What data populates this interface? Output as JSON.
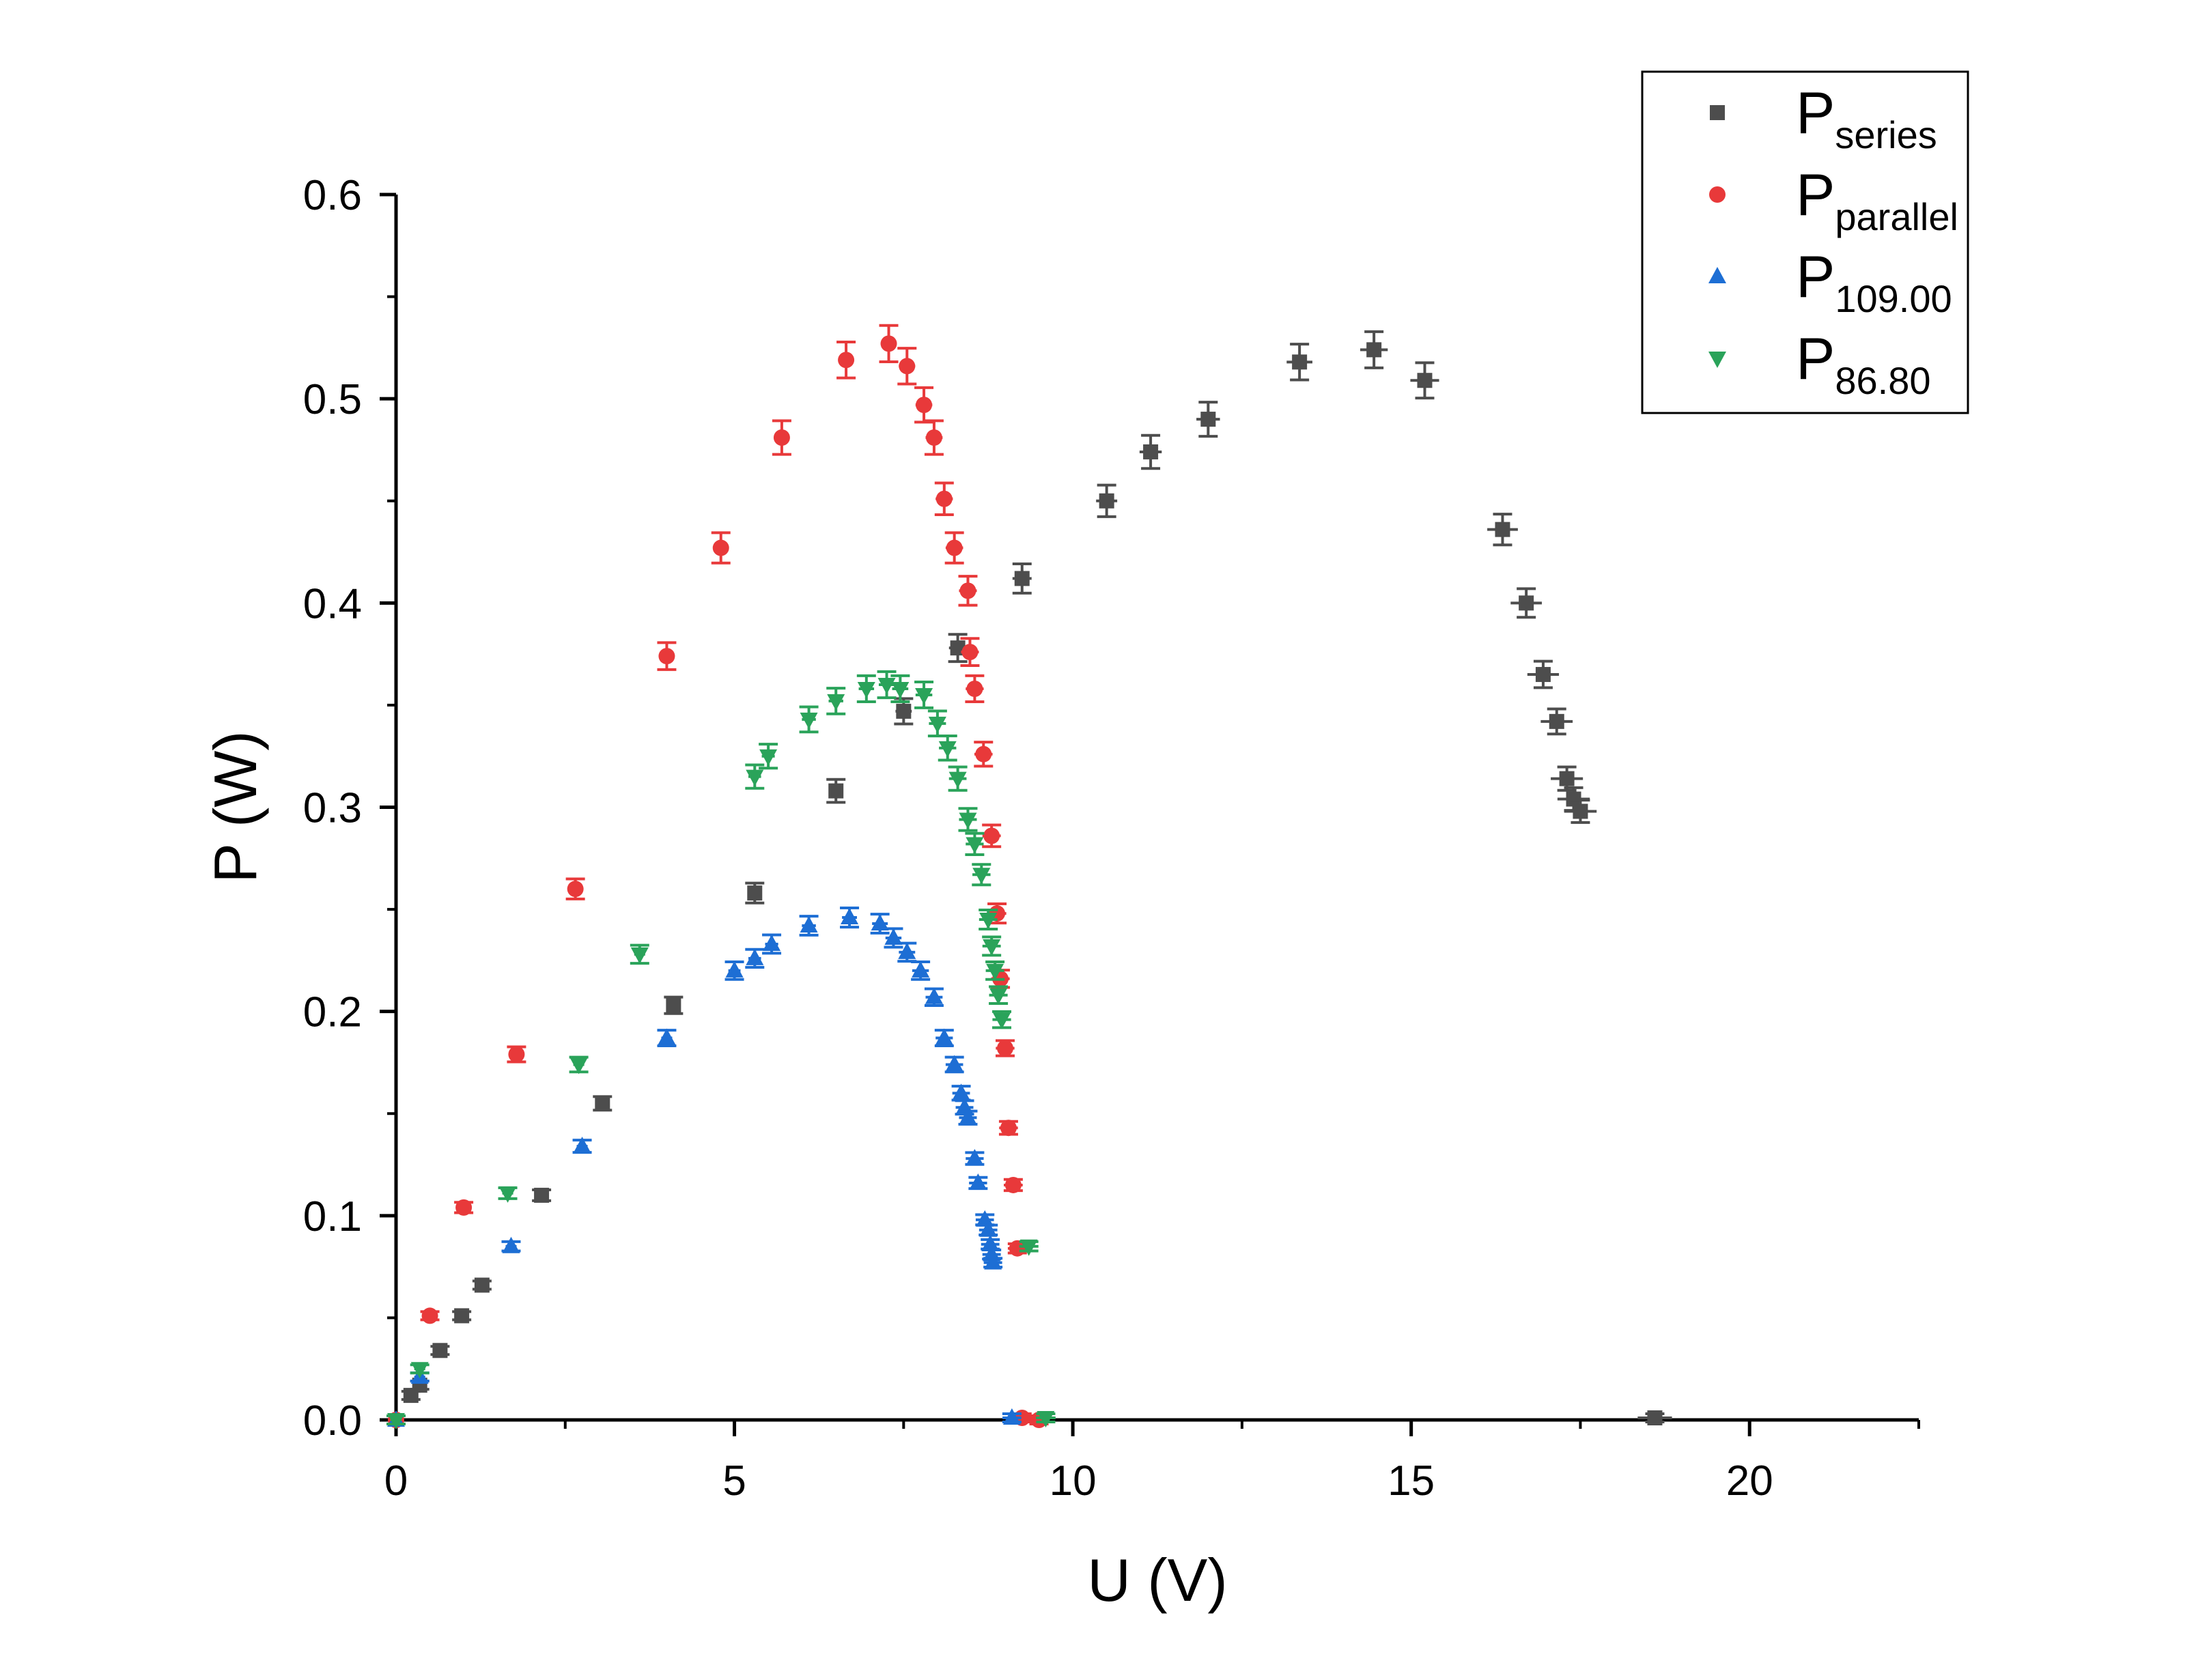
{
  "chart_data": {
    "type": "scatter",
    "xlabel": "U (V)",
    "ylabel": "P (W)",
    "xlim": [
      0,
      22.5
    ],
    "ylim": [
      0,
      0.6
    ],
    "x_ticks": [
      "0",
      "5",
      "10",
      "15",
      "20"
    ],
    "y_ticks": [
      "0.0",
      "0.1",
      "0.2",
      "0.3",
      "0.4",
      "0.5",
      "0.6"
    ],
    "grid": false,
    "legend_position": "top-right",
    "legend_base": "P",
    "error_bars": true,
    "series": [
      {
        "name": "P_series",
        "label_sub": "series",
        "marker": "square",
        "color": "#4d4d4d",
        "points": [
          [
            0.22,
            0.012
          ],
          [
            0.35,
            0.017
          ],
          [
            0.65,
            0.034
          ],
          [
            0.97,
            0.051
          ],
          [
            1.27,
            0.066
          ],
          [
            2.15,
            0.11
          ],
          [
            3.05,
            0.155
          ],
          [
            4.1,
            0.203
          ],
          [
            5.3,
            0.258
          ],
          [
            6.5,
            0.308
          ],
          [
            7.5,
            0.347
          ],
          [
            8.3,
            0.378
          ],
          [
            9.25,
            0.412
          ],
          [
            10.5,
            0.45
          ],
          [
            11.15,
            0.474
          ],
          [
            12.0,
            0.49
          ],
          [
            13.35,
            0.518
          ],
          [
            14.45,
            0.524
          ],
          [
            15.2,
            0.509
          ],
          [
            16.35,
            0.436
          ],
          [
            16.7,
            0.4
          ],
          [
            16.95,
            0.365
          ],
          [
            17.15,
            0.342
          ],
          [
            17.3,
            0.314
          ],
          [
            17.4,
            0.304
          ],
          [
            17.5,
            0.298
          ],
          [
            18.6,
            0.001
          ]
        ]
      },
      {
        "name": "P_parallel",
        "label_sub": "parallel",
        "marker": "circle",
        "color": "#e8393a",
        "points": [
          [
            0.0,
            0.0
          ],
          [
            0.5,
            0.051
          ],
          [
            1.0,
            0.104
          ],
          [
            1.78,
            0.179
          ],
          [
            2.65,
            0.26
          ],
          [
            4.0,
            0.374
          ],
          [
            4.8,
            0.427
          ],
          [
            5.7,
            0.481
          ],
          [
            6.65,
            0.519
          ],
          [
            7.28,
            0.527
          ],
          [
            7.55,
            0.516
          ],
          [
            7.8,
            0.497
          ],
          [
            7.95,
            0.481
          ],
          [
            8.1,
            0.451
          ],
          [
            8.25,
            0.427
          ],
          [
            8.45,
            0.406
          ],
          [
            8.48,
            0.376
          ],
          [
            8.55,
            0.358
          ],
          [
            8.68,
            0.326
          ],
          [
            8.8,
            0.286
          ],
          [
            8.88,
            0.248
          ],
          [
            8.93,
            0.216
          ],
          [
            9.0,
            0.182
          ],
          [
            9.05,
            0.143
          ],
          [
            9.12,
            0.115
          ],
          [
            9.18,
            0.084
          ],
          [
            9.25,
            0.001
          ],
          [
            9.5,
            0.0
          ]
        ]
      },
      {
        "name": "P_109.00",
        "label_sub": "109.00",
        "marker": "triangle-up",
        "color": "#1d6ed4",
        "points": [
          [
            0.0,
            0.0
          ],
          [
            0.35,
            0.021
          ],
          [
            1.7,
            0.085
          ],
          [
            2.75,
            0.134
          ],
          [
            4.0,
            0.187
          ],
          [
            5.0,
            0.22
          ],
          [
            5.3,
            0.226
          ],
          [
            5.55,
            0.233
          ],
          [
            6.1,
            0.242
          ],
          [
            6.7,
            0.246
          ],
          [
            7.15,
            0.243
          ],
          [
            7.35,
            0.236
          ],
          [
            7.55,
            0.229
          ],
          [
            7.75,
            0.22
          ],
          [
            7.95,
            0.207
          ],
          [
            8.1,
            0.187
          ],
          [
            8.25,
            0.174
          ],
          [
            8.35,
            0.16
          ],
          [
            8.4,
            0.153
          ],
          [
            8.45,
            0.148
          ],
          [
            8.55,
            0.128
          ],
          [
            8.6,
            0.116
          ],
          [
            8.7,
            0.098
          ],
          [
            8.75,
            0.093
          ],
          [
            8.78,
            0.086
          ],
          [
            8.8,
            0.081
          ],
          [
            8.82,
            0.077
          ],
          [
            9.1,
            0.001
          ]
        ]
      },
      {
        "name": "P_86.80",
        "label_sub": "86.80",
        "marker": "triangle-down",
        "color": "#2aa35a",
        "points": [
          [
            0.0,
            0.0
          ],
          [
            0.35,
            0.025
          ],
          [
            1.65,
            0.111
          ],
          [
            2.7,
            0.174
          ],
          [
            3.6,
            0.228
          ],
          [
            5.3,
            0.315
          ],
          [
            5.5,
            0.325
          ],
          [
            6.1,
            0.343
          ],
          [
            6.5,
            0.352
          ],
          [
            6.95,
            0.358
          ],
          [
            7.25,
            0.36
          ],
          [
            7.45,
            0.358
          ],
          [
            7.8,
            0.355
          ],
          [
            8.0,
            0.341
          ],
          [
            8.15,
            0.329
          ],
          [
            8.3,
            0.314
          ],
          [
            8.45,
            0.294
          ],
          [
            8.55,
            0.282
          ],
          [
            8.65,
            0.267
          ],
          [
            8.75,
            0.245
          ],
          [
            8.8,
            0.232
          ],
          [
            8.85,
            0.22
          ],
          [
            8.9,
            0.208
          ],
          [
            8.95,
            0.196
          ],
          [
            9.35,
            0.085
          ],
          [
            9.6,
            0.001
          ]
        ]
      }
    ]
  }
}
